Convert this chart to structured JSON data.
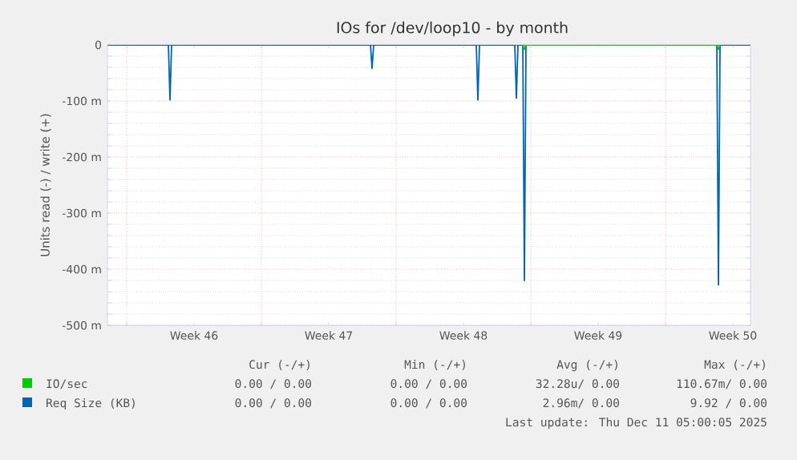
{
  "chart_data": {
    "type": "line",
    "title": "IOs for /dev/loop10 - by month",
    "ylabel": "Units read (-) / write (+)",
    "xlim": [
      "2025-11-09T00:00",
      "2025-12-12T10:00"
    ],
    "ylim": [
      -500,
      0
    ],
    "xticks": [
      {
        "value": "2025-11-10",
        "label": null
      },
      {
        "value": "2025-11-13T12:00",
        "label": "Week 46"
      },
      {
        "value": "2025-11-17",
        "label": null
      },
      {
        "value": "2025-11-20T12:00",
        "label": "Week 47"
      },
      {
        "value": "2025-11-24",
        "label": null
      },
      {
        "value": "2025-11-27T12:00",
        "label": "Week 48"
      },
      {
        "value": "2025-12-01",
        "label": null
      },
      {
        "value": "2025-12-04T12:00",
        "label": "Week 49"
      },
      {
        "value": "2025-12-08",
        "label": null
      },
      {
        "value": "2025-12-11T12:00",
        "label": "Week 50"
      }
    ],
    "yticks": [
      {
        "value": 0,
        "label": "0"
      },
      {
        "value": -100,
        "label": "-100 m"
      },
      {
        "value": -200,
        "label": "-200 m"
      },
      {
        "value": -300,
        "label": "-300 m"
      },
      {
        "value": -400,
        "label": "-400 m"
      },
      {
        "value": -500,
        "label": "-500 m"
      }
    ],
    "grid": true,
    "legend": "bottom",
    "marker": "none",
    "line_style": "solid",
    "series": [
      {
        "name": "IO/sec",
        "color": "#00cc00",
        "x": [
          "2025-11-30T14:00",
          "2025-11-30T16:00",
          "2025-11-30T18:00",
          "2025-12-10T16:00",
          "2025-12-10T18:00",
          "2025-12-10T20:00"
        ],
        "values": [
          0,
          -8,
          0,
          0,
          -8,
          0
        ]
      },
      {
        "name": "Req Size (KB)",
        "color": "#0066b3",
        "x": [
          "2025-11-09T01:00",
          "2025-11-12T04:00",
          "2025-11-12T06:00",
          "2025-11-12T08:00",
          "2025-11-22T16:00",
          "2025-11-22T18:00",
          "2025-11-22T20:00",
          "2025-11-28T04:00",
          "2025-11-28T06:00",
          "2025-11-28T08:00",
          "2025-11-30T04:00",
          "2025-11-30T06:00",
          "2025-11-30T08:00",
          "2025-11-30T14:00",
          "2025-11-30T16:00",
          "2025-11-30T18:00",
          "2025-12-10T16:00",
          "2025-12-10T18:00",
          "2025-12-10T20:00",
          "2025-12-12T09:00"
        ],
        "values": [
          0,
          0,
          -98,
          0,
          0,
          -42,
          0,
          0,
          -98,
          0,
          0,
          -95,
          0,
          0,
          -420,
          0,
          0,
          -428,
          0,
          0
        ]
      }
    ],
    "annotations": [
      "Cur (-/+)",
      "Min (-/+)",
      "Avg (-/+)",
      "Max (-/+)",
      "0.00 / 0.00",
      "0.00 / 0.00",
      "32.28u/ 0.00",
      "110.67m/ 0.00",
      "0.00 / 0.00",
      "0.00 / 0.00",
      "2.96m/ 0.00",
      "9.92 / 0.00",
      "Last update: Thu Dec 11 05:00:05 2025"
    ]
  }
}
